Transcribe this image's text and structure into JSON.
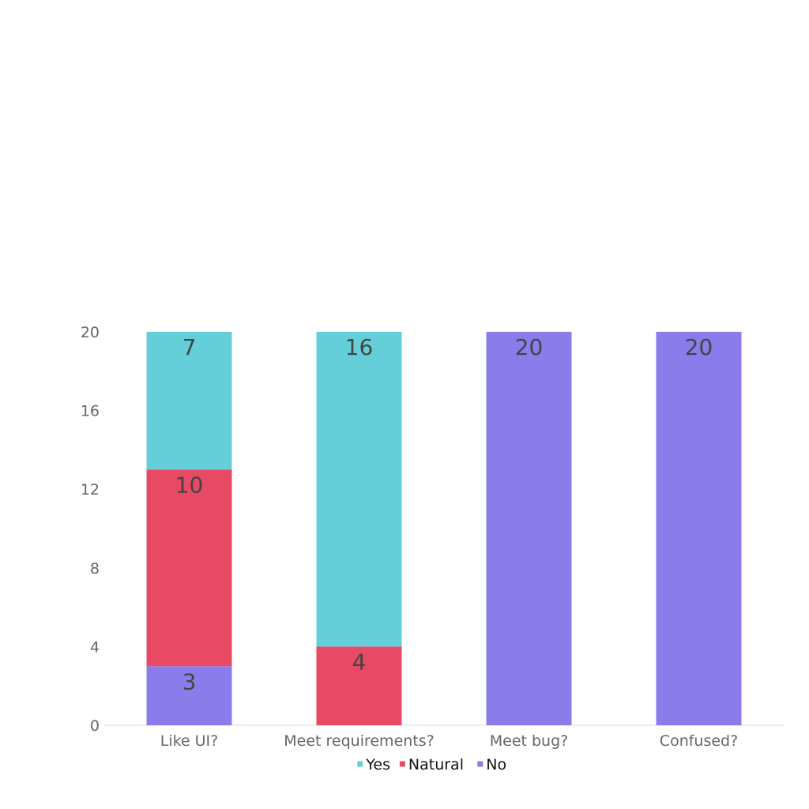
{
  "chart_data": {
    "type": "bar",
    "stacked": true,
    "categories": [
      "Like UI?",
      "Meet requirements?",
      "Meet bug?",
      "Confused?"
    ],
    "series": [
      {
        "name": "No",
        "values": [
          3,
          0,
          20,
          20
        ],
        "color": "#8a7deb"
      },
      {
        "name": "Natural",
        "values": [
          10,
          4,
          0,
          0
        ],
        "color": "#e84a65"
      },
      {
        "name": "Yes",
        "values": [
          7,
          16,
          0,
          0
        ],
        "color": "#65cfd9"
      }
    ],
    "legend_order": [
      "Yes",
      "Natural",
      "No"
    ],
    "y_ticks": [
      0,
      4,
      8,
      12,
      16,
      20
    ],
    "ylim": [
      0,
      20
    ],
    "grid": false,
    "legend_position": "bottom",
    "show_data_labels": true
  }
}
